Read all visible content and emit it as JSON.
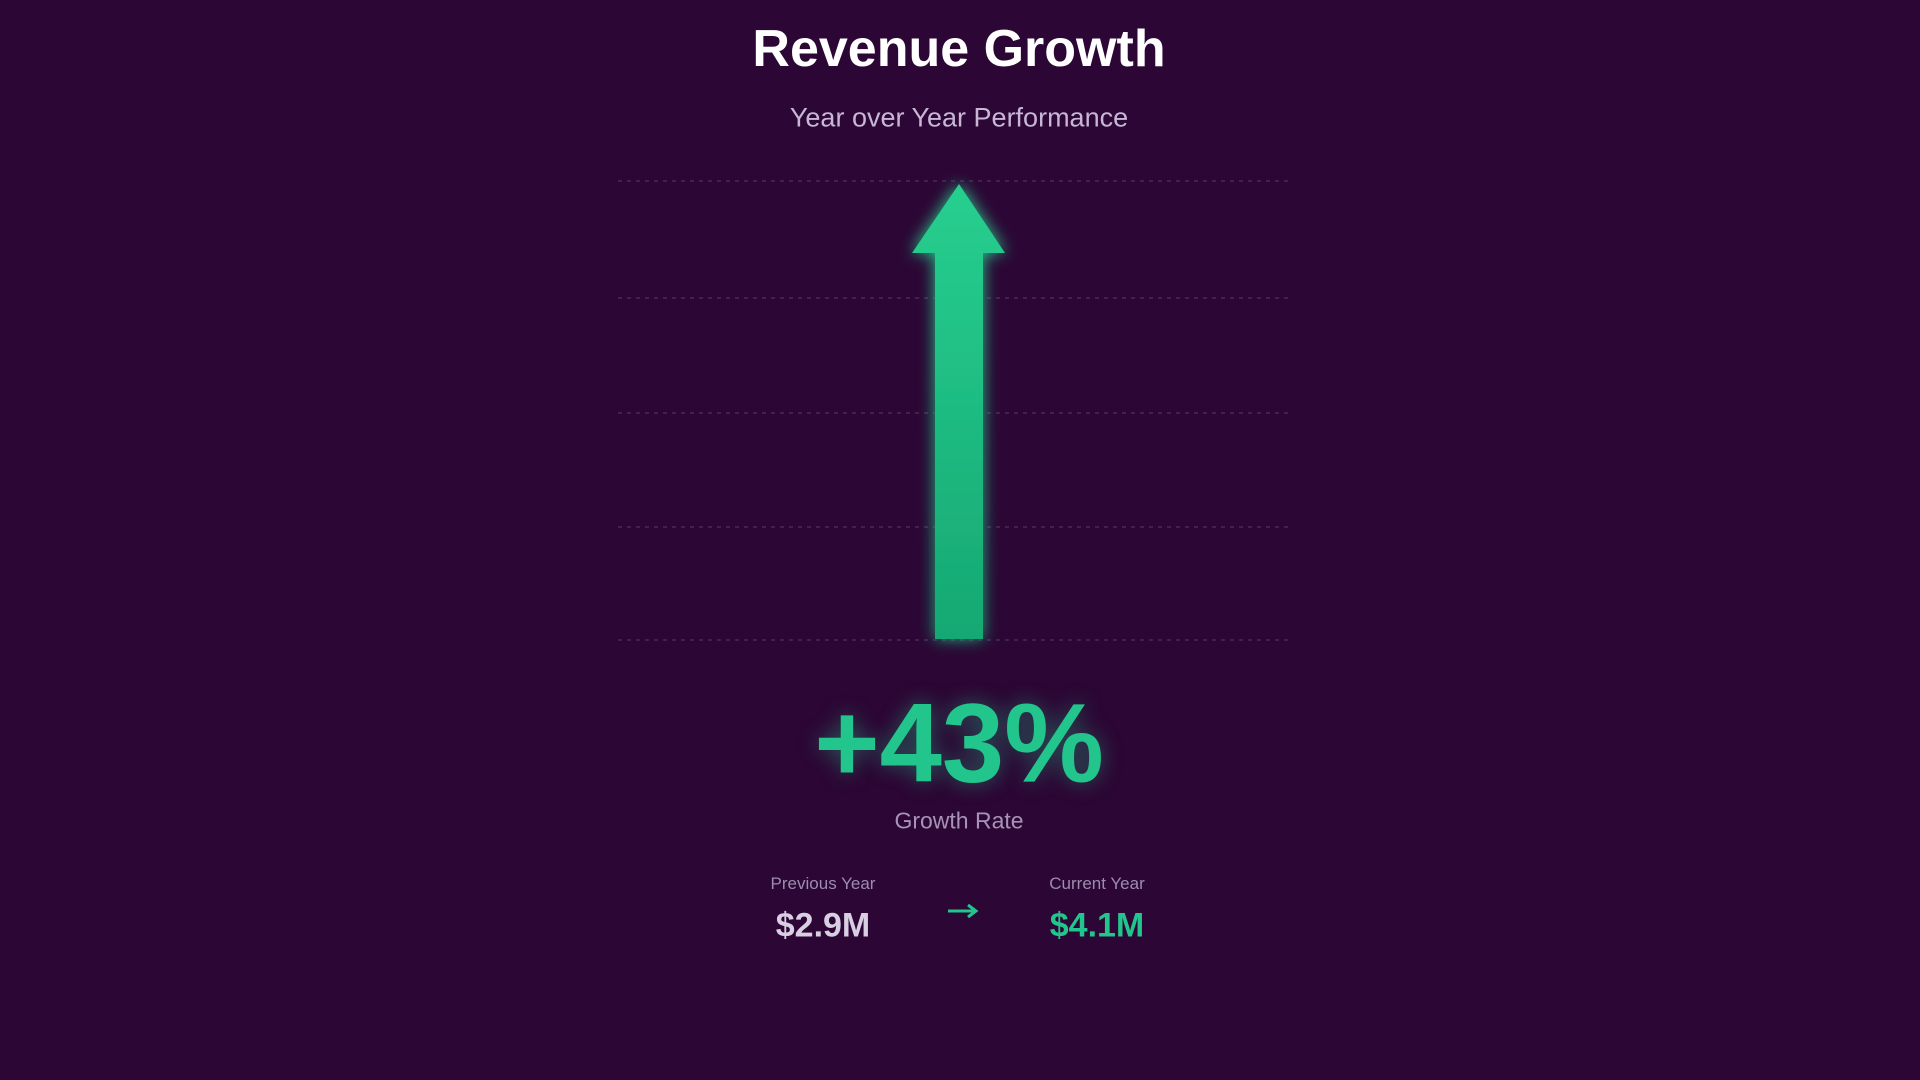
{
  "header": {
    "title": "Revenue Growth",
    "subtitle": "Year over Year Performance"
  },
  "kpi": {
    "value": "+43%",
    "label": "Growth Rate"
  },
  "comparison": {
    "previous": {
      "label": "Previous Year",
      "value": "$2.9M"
    },
    "current": {
      "label": "Current Year",
      "value": "$4.1M"
    }
  }
}
